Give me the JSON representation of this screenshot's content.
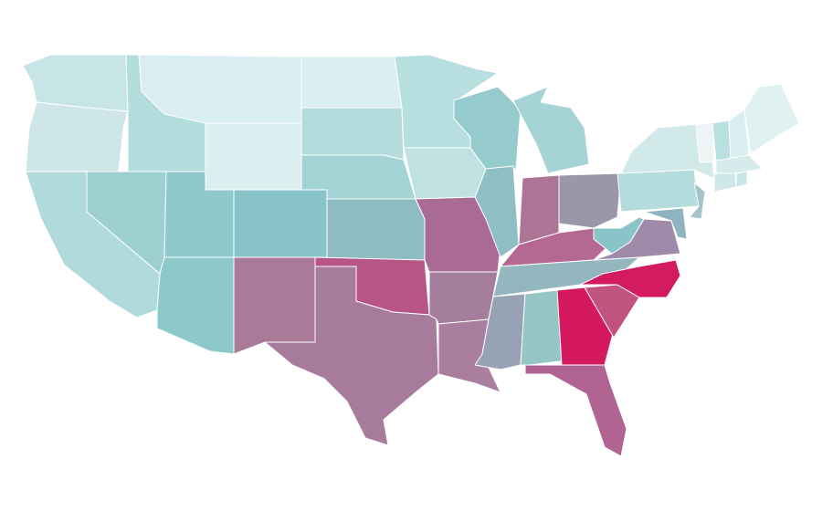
{
  "map": {
    "fills": [
      "#c7e4e6",
      "#cfe6e8",
      "#b1dadc",
      "#9ed0d2",
      "#b3dcdd",
      "#d9eef0",
      "#dbeef0",
      "#8fc9cc",
      "#8dc9cb",
      "#88c4c9",
      "#ab7a99",
      "#dbeef0",
      "#b4dcdd",
      "#a4d3d5",
      "#8fbcc3",
      "#b75586",
      "#a77b9b",
      "#b8dfe0",
      "#c0e1e2",
      "#a96a94",
      "#a47e9c",
      "#a97e9f",
      "#95cbcc",
      "#8fbec5",
      "#a6d3d5",
      "#ae7496",
      "#9c96ab",
      "#b46892",
      "#94b6bf",
      "#97a3b4",
      "#96c5c6",
      "#d5195e",
      "#b16492",
      "#c0547f",
      "#d31b60",
      "#a08aa9",
      "#89c4c9",
      "#b4dcdc",
      "#d2e9ea",
      "#8fb4c0",
      "#a4c3cb",
      "#b9dfe0",
      "#eef3f3",
      "#d9eef0",
      "#e0f1f2",
      "#d5ebec",
      "#cfe7e8",
      "#c9e5e6"
    ]
  }
}
